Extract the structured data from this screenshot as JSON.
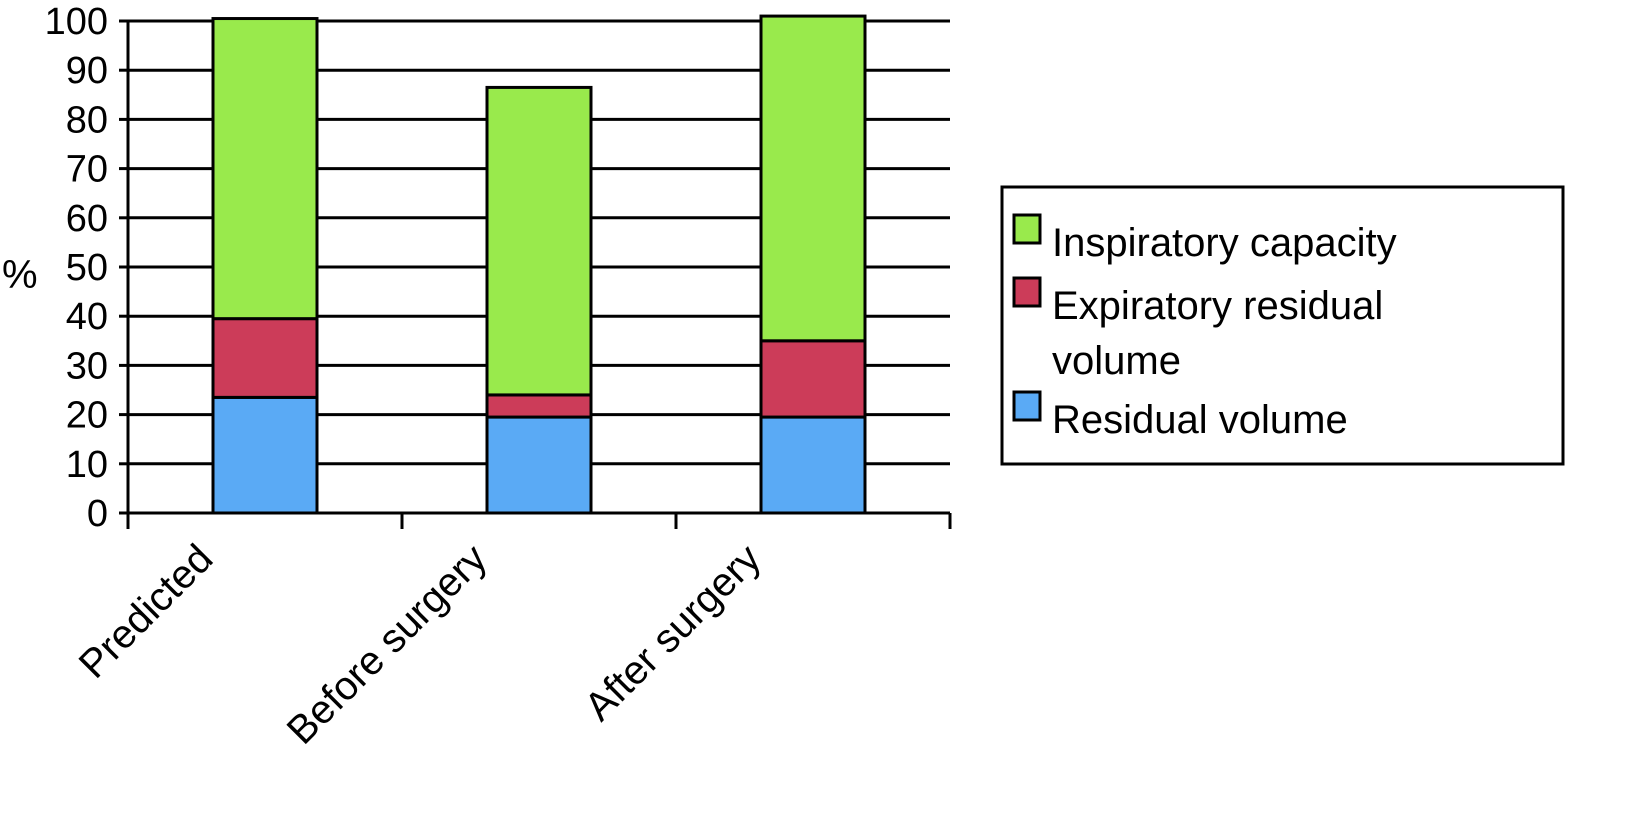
{
  "chart_data": {
    "type": "bar",
    "stacked": true,
    "categories": [
      "Predicted",
      "Before surgery",
      "After surgery"
    ],
    "series": [
      {
        "name": "Residual volume",
        "values": [
          23.5,
          19.5,
          19.5
        ],
        "color": "#5aaaf5"
      },
      {
        "name": "Expiratory residual volume",
        "values": [
          16,
          4.5,
          15.5
        ],
        "color": "#cc3c59"
      },
      {
        "name": "Inspiratory capacity",
        "values": [
          61,
          62.5,
          66
        ],
        "color": "#99ea4c"
      }
    ],
    "legend_order": [
      "Inspiratory capacity",
      "Expiratory residual",
      "volume",
      "Residual volume"
    ],
    "legend_colors": [
      "#99ea4c",
      "#cc3c59",
      "",
      "#5aaaf5"
    ],
    "ylabel": "%",
    "xlabel": "",
    "title": "",
    "ylim": [
      0,
      100
    ],
    "yticks": [
      "0",
      "10",
      "20",
      "30",
      "40",
      "50",
      "60",
      "70",
      "80",
      "90",
      "100"
    ],
    "grid": true,
    "legend_position": "right"
  }
}
